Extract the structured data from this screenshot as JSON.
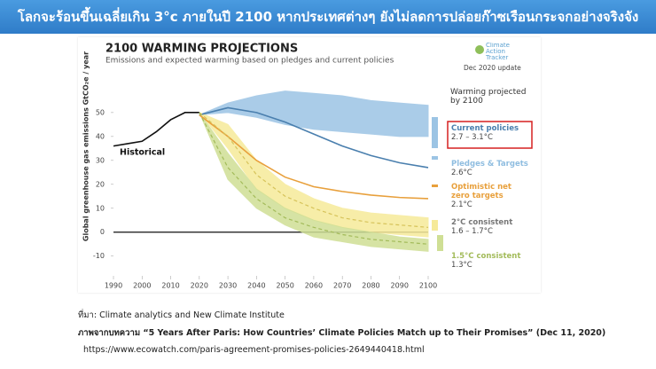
{
  "slide_title": "โลกจะร้อนขึ้นเฉลี่ยเกิน 3°c ภายในปี 2100 หากประเทศต่างๆ ยังไม่ลดการปล่อยก๊าซเรือนกระจกอย่างจริงจัง",
  "logo": "Climate Action Tracker",
  "update": "Dec 2020 update",
  "warming_header": "Warming projected by 2100",
  "sources": [
    "ที่มา: Climate analytics and New Climate Institute",
    "ภาพจากบทความ “5 Years After Paris: How Countries’ Climate Policies Match up to Their Promises” (Dec 11, 2020)",
    "https://www.ecowatch.com/paris-agreement-promises-policies-2649440418.html"
  ],
  "chart_data": {
    "type": "line",
    "title": "2100 WARMING PROJECTIONS",
    "subtitle": "Emissions and expected warming based on pledges and current policies",
    "y_label": "Global greenhouse gas emissions GtCO₂e / year",
    "x": [
      1990,
      1995,
      2000,
      2005,
      2010,
      2015,
      2020,
      2030,
      2040,
      2050,
      2060,
      2070,
      2080,
      2090,
      2100
    ],
    "xlim": [
      1990,
      2100
    ],
    "xticks": [
      1990,
      2000,
      2010,
      2020,
      2030,
      2040,
      2050,
      2060,
      2070,
      2080,
      2090,
      2100
    ],
    "ylim": [
      -19,
      67
    ],
    "yticks": [
      -10,
      0,
      10,
      20,
      30,
      40,
      50
    ],
    "series": [
      {
        "name": "Historical",
        "style": "line",
        "color": "#111111",
        "values": [
          36,
          37,
          38,
          42,
          47,
          50,
          50,
          null,
          null,
          null,
          null,
          null,
          null,
          null,
          null
        ]
      },
      {
        "name": "Current policies",
        "warming": "2.7 – 3.1°C",
        "style": "band",
        "color": "#4a7fae",
        "fill": "#9cc4e4",
        "low": [
          null,
          null,
          null,
          null,
          null,
          null,
          49,
          50,
          48,
          45,
          43,
          42,
          41,
          40,
          40
        ],
        "high": [
          null,
          null,
          null,
          null,
          null,
          null,
          49,
          54,
          57,
          59,
          58,
          57,
          55,
          54,
          53
        ]
      },
      {
        "name": "Pledges & Targets",
        "warming": "2.6°C",
        "style": "line",
        "color": "#4a7fae",
        "label_color": "#8fbde0",
        "values": [
          null,
          null,
          null,
          null,
          null,
          null,
          49,
          52,
          50,
          46,
          41,
          36,
          32,
          29,
          27
        ]
      },
      {
        "name": "Optimistic net zero targets",
        "warming": "2.1°C",
        "style": "line",
        "color": "#e8a03c",
        "values": [
          null,
          null,
          null,
          null,
          null,
          null,
          49,
          40,
          30,
          23,
          19,
          17,
          15.5,
          14.5,
          14
        ]
      },
      {
        "name": "2°C consistent",
        "warming": "1.6 – 1.7°C",
        "style": "band",
        "color": "#d6c35a",
        "fill": "#f6ea9a",
        "label_color": "#777777",
        "low": [
          null,
          null,
          null,
          null,
          null,
          null,
          50,
          35,
          18,
          10,
          5,
          2,
          0,
          -1,
          -2
        ],
        "high": [
          null,
          null,
          null,
          null,
          null,
          null,
          50,
          45,
          30,
          20,
          14,
          10,
          8,
          7,
          6
        ],
        "values": [
          null,
          null,
          null,
          null,
          null,
          null,
          50,
          40,
          24,
          15,
          10,
          6,
          4,
          3,
          2
        ]
      },
      {
        "name": "1.5°C consistent",
        "warming": "1.3°C",
        "style": "band",
        "color": "#a3bb5a",
        "fill": "#cfdf95",
        "low": [
          null,
          null,
          null,
          null,
          null,
          null,
          50,
          22,
          10,
          3,
          -2,
          -4,
          -6,
          -7,
          -8
        ],
        "high": [
          null,
          null,
          null,
          null,
          null,
          null,
          50,
          33,
          18,
          10,
          5,
          2,
          0,
          -2,
          -3
        ],
        "values": [
          null,
          null,
          null,
          null,
          null,
          null,
          50,
          27,
          14,
          6,
          2,
          -1,
          -3,
          -4,
          -5
        ]
      }
    ]
  }
}
